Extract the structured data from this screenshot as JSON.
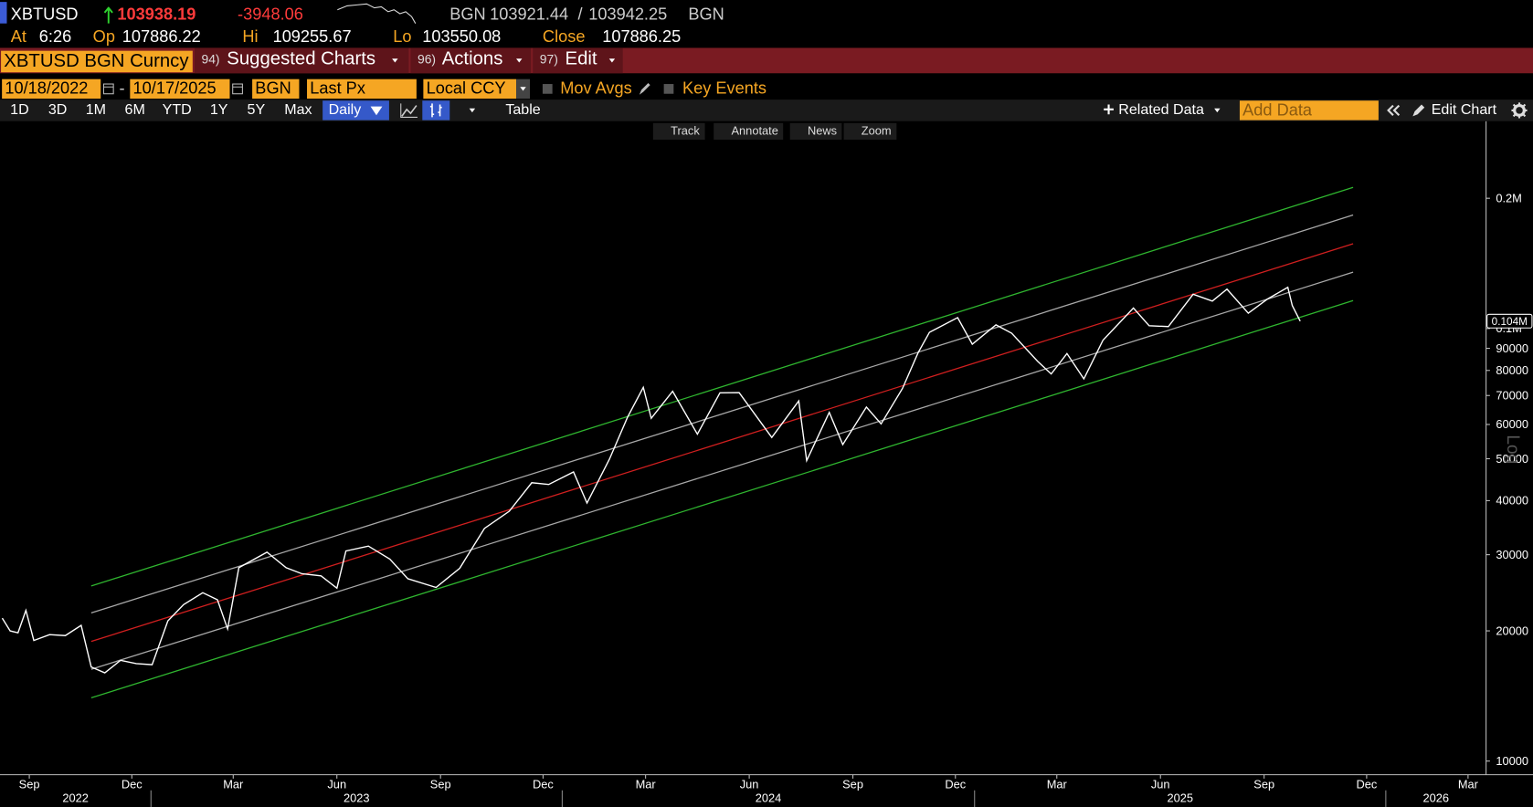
{
  "header": {
    "ticker": "XBTUSD",
    "last": "103938.19",
    "change": "-3948.06",
    "bid_source": "BGN",
    "bid": "103921.44",
    "separator": "/",
    "ask": "103942.25",
    "ask_source": "BGN",
    "at_label": "At",
    "time": "6:26",
    "open_label": "Op",
    "open": "107886.22",
    "high_label": "Hi",
    "high": "109255.67",
    "low_label": "Lo",
    "low": "103550.08",
    "close_label": "Close",
    "close": "107886.25"
  },
  "menu": {
    "security": "XBTUSD BGN Curncy",
    "items": [
      {
        "number": "94)",
        "label": "Suggested Charts"
      },
      {
        "number": "96)",
        "label": "Actions"
      },
      {
        "number": "97)",
        "label": "Edit"
      }
    ]
  },
  "controls": {
    "start": "10/18/2022",
    "dash": "-",
    "end": "10/17/2025",
    "source": "BGN",
    "field": "Last Px",
    "currency": "Local CCY",
    "mov_avgs": "Mov Avgs",
    "key_events": "Key Events"
  },
  "toolbar": {
    "periods": [
      "1D",
      "3D",
      "1M",
      "6M",
      "YTD",
      "1Y",
      "5Y",
      "Max"
    ],
    "frequency": "Daily",
    "table": "Table",
    "related": "Related Data",
    "add_data": "Add Data",
    "edit_chart": "Edit Chart"
  },
  "chart_tools": [
    "Track",
    "Annotate",
    "News",
    "Zoom"
  ],
  "chart_data": {
    "type": "line",
    "log_scale": true,
    "grid": false,
    "x": [
      "2022-08-22",
      "2022-08-29",
      "2022-09-05",
      "2022-09-12",
      "2022-09-19",
      "2022-10-03",
      "2022-10-17",
      "2022-10-31",
      "2022-11-09",
      "2022-11-21",
      "2022-12-05",
      "2022-12-19",
      "2023-01-02",
      "2023-01-16",
      "2023-01-30",
      "2023-02-16",
      "2023-03-01",
      "2023-03-10",
      "2023-03-20",
      "2023-04-14",
      "2023-05-01",
      "2023-05-15",
      "2023-06-01",
      "2023-06-15",
      "2023-06-23",
      "2023-07-13",
      "2023-08-01",
      "2023-08-17",
      "2023-09-11",
      "2023-10-02",
      "2023-10-24",
      "2023-11-15",
      "2023-12-05",
      "2023-12-20",
      "2024-01-11",
      "2024-01-23",
      "2024-02-12",
      "2024-02-28",
      "2024-03-13",
      "2024-03-20",
      "2024-04-08",
      "2024-04-30",
      "2024-05-20",
      "2024-06-06",
      "2024-07-05",
      "2024-07-29",
      "2024-08-05",
      "2024-08-25",
      "2024-09-06",
      "2024-09-27",
      "2024-10-10",
      "2024-10-29",
      "2024-11-12",
      "2024-11-22",
      "2024-12-17",
      "2024-12-30",
      "2025-01-20",
      "2025-02-03",
      "2025-02-26",
      "2025-03-10",
      "2025-03-24",
      "2025-04-08",
      "2025-04-25",
      "2025-05-22",
      "2025-06-05",
      "2025-06-22",
      "2025-07-14",
      "2025-07-31",
      "2025-08-13",
      "2025-09-01",
      "2025-09-18",
      "2025-10-06",
      "2025-10-10",
      "2025-10-17"
    ],
    "series": [
      {
        "color": "#ffffff",
        "values": [
          21400,
          20000,
          19800,
          22300,
          19000,
          19600,
          19500,
          20600,
          16500,
          16000,
          17100,
          16800,
          16700,
          21100,
          23000,
          24500,
          23600,
          20200,
          28000,
          30400,
          28000,
          27100,
          26800,
          25100,
          30600,
          31400,
          29300,
          26400,
          25200,
          27900,
          34500,
          37800,
          44000,
          43600,
          46600,
          39500,
          49900,
          62400,
          73100,
          62000,
          71600,
          57000,
          71000,
          71100,
          56000,
          68000,
          49500,
          64000,
          53900,
          65800,
          60200,
          72700,
          88000,
          98000,
          106000,
          92000,
          102000,
          97500,
          84000,
          78500,
          87500,
          76500,
          94000,
          111500,
          101500,
          101000,
          120000,
          115700,
          123300,
          108500,
          117000,
          124500,
          113000,
          104000
        ]
      }
    ],
    "channel_x": [
      "2022-11-09",
      "2025-12-03"
    ],
    "channel": [
      {
        "color": "#2fb52f",
        "values": [
          25400,
          212000
        ]
      },
      {
        "color": "#a8a8a8",
        "values": [
          22000,
          183000
        ]
      },
      {
        "color": "#d01f1f",
        "values": [
          18900,
          157000
        ]
      },
      {
        "color": "#a8a8a8",
        "values": [
          16300,
          135000
        ]
      },
      {
        "color": "#2fb52f",
        "values": [
          14000,
          116000
        ]
      }
    ],
    "xlim": [
      "2022-08-20",
      "2026-03-31"
    ],
    "xticks": [
      {
        "value": "2022-09-15",
        "label": "Sep"
      },
      {
        "value": "2022-12-15",
        "label": "Dec"
      },
      {
        "value": "2023-03-15",
        "label": "Mar"
      },
      {
        "value": "2023-06-15",
        "label": "Jun"
      },
      {
        "value": "2023-09-15",
        "label": "Sep"
      },
      {
        "value": "2023-12-15",
        "label": "Dec"
      },
      {
        "value": "2024-03-15",
        "label": "Mar"
      },
      {
        "value": "2024-06-15",
        "label": "Jun"
      },
      {
        "value": "2024-09-15",
        "label": "Sep"
      },
      {
        "value": "2024-12-15",
        "label": "Dec"
      },
      {
        "value": "2025-03-15",
        "label": "Mar"
      },
      {
        "value": "2025-06-15",
        "label": "Jun"
      },
      {
        "value": "2025-09-15",
        "label": "Sep"
      },
      {
        "value": "2025-12-15",
        "label": "Dec"
      },
      {
        "value": "2026-03-15",
        "label": "Mar"
      }
    ],
    "years": [
      2022,
      2023,
      2024,
      2025,
      2026
    ],
    "ylim": [
      9300,
      300000
    ],
    "yticks": [
      10000,
      20000,
      30000,
      40000,
      50000,
      60000,
      70000,
      80000,
      90000,
      {
        "value": 100000,
        "label": "0.1M"
      },
      {
        "value": 200000,
        "label": "0.2M"
      }
    ],
    "last_marker": {
      "value": 104000,
      "label": "0.104M"
    },
    "scale_label": "Log"
  }
}
